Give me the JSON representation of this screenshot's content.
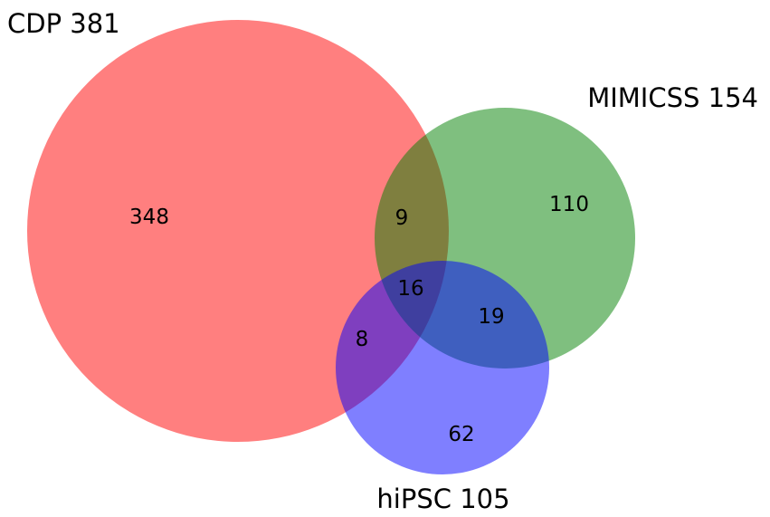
{
  "sets": [
    {
      "key": "cdp",
      "label": "CDP 381",
      "color": "#ff0000",
      "opacity": 0.5
    },
    {
      "key": "mimicss",
      "label": "MIMICSS 154",
      "color": "#008000",
      "opacity": 0.5
    },
    {
      "key": "hipsc",
      "label": "hiPSC 105",
      "color": "#0000ff",
      "opacity": 0.5
    }
  ],
  "regions": {
    "cdp_only": "348",
    "mimicss_only": "110",
    "hipsc_only": "62",
    "cdp_mimicss": "9",
    "cdp_hipsc": "8",
    "mimicss_hipsc": "19",
    "all_three": "16"
  }
}
